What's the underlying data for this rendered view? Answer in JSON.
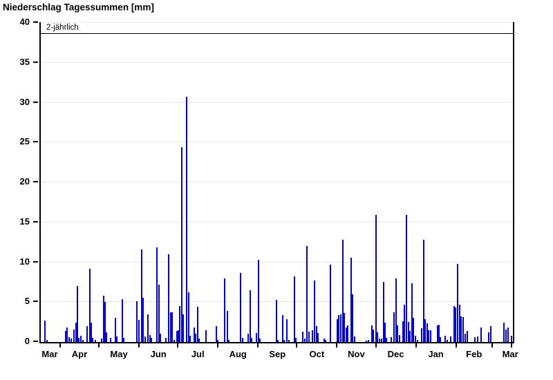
{
  "title": "Niederschlag Tagessummen [mm]",
  "threshold": {
    "label": "2-jährlich",
    "value": 38.7
  },
  "colors": {
    "bar": "#0000e0",
    "grid": "#e7e7e7",
    "axis": "#000000",
    "background": "#ffffff"
  },
  "chart_data": {
    "type": "bar",
    "title": "Niederschlag Tagessummen [mm]",
    "xlabel": "",
    "ylabel": "",
    "ylim": [
      0,
      40
    ],
    "yticks": [
      0,
      5,
      10,
      15,
      20,
      25,
      30,
      35,
      40
    ],
    "grid": true,
    "legend": "none",
    "x_axis_note": "day index 0 = ~16 March, axis spans one year (365 days)",
    "days_total": 365,
    "month_tick_days": [
      16,
      46,
      77,
      107,
      138,
      169,
      199,
      230,
      260,
      291,
      322,
      350,
      365
    ],
    "month_labels": [
      "Mar",
      "Apr",
      "May",
      "Jun",
      "Jul",
      "Aug",
      "Sep",
      "Oct",
      "Nov",
      "Dec",
      "Jan",
      "Feb",
      "Mar"
    ],
    "month_label_days": [
      8,
      31,
      61.5,
      92,
      122.5,
      153.5,
      184,
      214.5,
      245,
      275.5,
      306.5,
      336,
      364
    ],
    "threshold_line": {
      "label": "2-jährlich",
      "value": 38.7
    },
    "points": [
      [
        3,
        2.7
      ],
      [
        5,
        0.3
      ],
      [
        19,
        1.4
      ],
      [
        20.5,
        1.8
      ],
      [
        22,
        0.6
      ],
      [
        23.5,
        0.4
      ],
      [
        25.5,
        1.6
      ],
      [
        27,
        2.4
      ],
      [
        28.2,
        7.0
      ],
      [
        29.5,
        0.5
      ],
      [
        31,
        0.8
      ],
      [
        32.5,
        0.3
      ],
      [
        36,
        2.0
      ],
      [
        37.8,
        9.2
      ],
      [
        39,
        2.4
      ],
      [
        40.2,
        0.5
      ],
      [
        42,
        0.3
      ],
      [
        47,
        0.4
      ],
      [
        48.4,
        5.8
      ],
      [
        49.7,
        5.0
      ],
      [
        51,
        1.2
      ],
      [
        54,
        0.5
      ],
      [
        57.5,
        3.0
      ],
      [
        58.8,
        0.7
      ],
      [
        63,
        5.4
      ],
      [
        64.3,
        0.5
      ],
      [
        74.5,
        5.1
      ],
      [
        75.8,
        2.8
      ],
      [
        77.9,
        11.6
      ],
      [
        79.3,
        5.5
      ],
      [
        80.6,
        0.7
      ],
      [
        83,
        3.5
      ],
      [
        84.3,
        0.9
      ],
      [
        85.6,
        0.5
      ],
      [
        90,
        11.9
      ],
      [
        91.4,
        7.2
      ],
      [
        92.7,
        1.0
      ],
      [
        96.5,
        0.5
      ],
      [
        99,
        11.0
      ],
      [
        100.5,
        3.7
      ],
      [
        101.8,
        3.7
      ],
      [
        103.1,
        0.3
      ],
      [
        105.2,
        1.4
      ],
      [
        106.4,
        1.5
      ],
      [
        107.6,
        4.5
      ],
      [
        108.9,
        24.4
      ],
      [
        110.2,
        3.5
      ],
      [
        112.8,
        30.7
      ],
      [
        114.1,
        6.2
      ],
      [
        115.4,
        0.8
      ],
      [
        118.4,
        1.8
      ],
      [
        119.7,
        1.0
      ],
      [
        121.3,
        4.4
      ],
      [
        122.6,
        0.4
      ],
      [
        127.8,
        1.5
      ],
      [
        135.5,
        2.0
      ],
      [
        136.8,
        0.3
      ],
      [
        142.3,
        8.0
      ],
      [
        144.3,
        3.9
      ],
      [
        145.6,
        0.3
      ],
      [
        154.5,
        8.7
      ],
      [
        155.8,
        0.5
      ],
      [
        160.3,
        1.0
      ],
      [
        161.8,
        6.5
      ],
      [
        163.2,
        0.5
      ],
      [
        167,
        1.1
      ],
      [
        168.3,
        10.3
      ],
      [
        169.6,
        0.4
      ],
      [
        182,
        5.3
      ],
      [
        183.3,
        0.3
      ],
      [
        187,
        3.4
      ],
      [
        188.3,
        0.3
      ],
      [
        190.3,
        2.9
      ],
      [
        191.6,
        0.3
      ],
      [
        196,
        8.2
      ],
      [
        197.4,
        0.5
      ],
      [
        202.6,
        1.3
      ],
      [
        204,
        0.4
      ],
      [
        206,
        12.0
      ],
      [
        207.5,
        1.3
      ],
      [
        210.2,
        1.5
      ],
      [
        211.6,
        7.7
      ],
      [
        213,
        2.0
      ],
      [
        214.3,
        1.1
      ],
      [
        219,
        0.4
      ],
      [
        220.3,
        0.3
      ],
      [
        223.7,
        9.7
      ],
      [
        229,
        2.9
      ],
      [
        230.5,
        3.4
      ],
      [
        231.8,
        3.5
      ],
      [
        233.3,
        12.8
      ],
      [
        234.8,
        3.6
      ],
      [
        236,
        1.8
      ],
      [
        237.3,
        2.1
      ],
      [
        239.8,
        10.6
      ],
      [
        241.1,
        6.0
      ],
      [
        242.4,
        0.7
      ],
      [
        251.5,
        0.2
      ],
      [
        253.5,
        0.3
      ],
      [
        256,
        2.1
      ],
      [
        257.3,
        1.6
      ],
      [
        259,
        15.9
      ],
      [
        260.3,
        1.2
      ],
      [
        261.6,
        0.4
      ],
      [
        263.3,
        0.4
      ],
      [
        264.8,
        7.5
      ],
      [
        266.1,
        2.4
      ],
      [
        267.4,
        0.5
      ],
      [
        271.2,
        0.6
      ],
      [
        273,
        3.7
      ],
      [
        274.5,
        8.0
      ],
      [
        275.8,
        2.1
      ],
      [
        277.2,
        0.9
      ],
      [
        280,
        2.6
      ],
      [
        281.3,
        4.7
      ],
      [
        282.8,
        15.9
      ],
      [
        284.1,
        2.5
      ],
      [
        285.4,
        1.4
      ],
      [
        286.9,
        7.4
      ],
      [
        288.2,
        3.0
      ],
      [
        289.5,
        0.8
      ],
      [
        291,
        0.3
      ],
      [
        294.6,
        1.7
      ],
      [
        296,
        12.8
      ],
      [
        297.3,
        2.9
      ],
      [
        298.7,
        2.3
      ],
      [
        300,
        1.5
      ],
      [
        301.3,
        1.5
      ],
      [
        306.5,
        2.1
      ],
      [
        307.8,
        2.2
      ],
      [
        309.1,
        0.6
      ],
      [
        312.7,
        0.8
      ],
      [
        314.3,
        0.3
      ],
      [
        316.9,
        0.7
      ],
      [
        319.4,
        4.5
      ],
      [
        320.8,
        4.3
      ],
      [
        322.3,
        9.8
      ],
      [
        323.7,
        4.7
      ],
      [
        325.1,
        3.2
      ],
      [
        326.6,
        3.1
      ],
      [
        328,
        1.0
      ],
      [
        329.6,
        1.4
      ],
      [
        335.8,
        0.6
      ],
      [
        337.6,
        0.7
      ],
      [
        340.3,
        1.8
      ],
      [
        346.4,
        1.2
      ],
      [
        348,
        2.0
      ],
      [
        358.3,
        2.4
      ],
      [
        359.7,
        1.6
      ],
      [
        361.2,
        1.8
      ],
      [
        363.7,
        0.8
      ]
    ]
  }
}
